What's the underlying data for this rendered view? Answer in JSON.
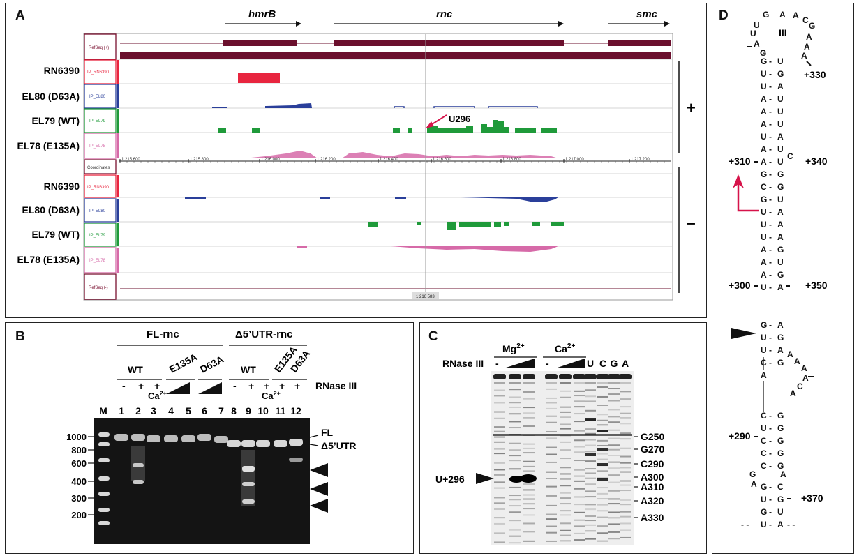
{
  "panel_a": {
    "label": "A",
    "genes": [
      "hmrB",
      "rnc",
      "smc"
    ],
    "track_labels_plus": [
      "RN6390",
      "EL80 (D63A)",
      "EL79 (WT)",
      "EL78 (E135A)"
    ],
    "track_labels_minus": [
      "RN6390",
      "EL80 (D63A)",
      "EL79 (WT)",
      "EL78 (E135A)"
    ],
    "track_boxes": {
      "refseq_plus": "RefSeq (+)",
      "ip_rn6390": "IP_RN6390",
      "ip_el80": "IP_EL80",
      "ip_el79": "IP_EL79",
      "ip_el78": "IP_EL78",
      "coordinates": "Coordinates",
      "refseq_minus": "RefSeq (-)"
    },
    "coord_ticks": [
      "1 215 600",
      "1 215 800",
      "1 216 000",
      "1 216 200",
      "1 216 400",
      "1 216 600",
      "1 216 800",
      "1 217 000",
      "1 217 200"
    ],
    "cursor_label": "1 216 583",
    "strand_plus": "+",
    "strand_minus": "−",
    "annotation": "U296",
    "colors": {
      "rn6390": "#e8253f",
      "el80": "#2a3f9a",
      "el79": "#1f9a3a",
      "el78": "#d66aa8",
      "refseq": "#6b0f2d"
    }
  },
  "panel_b": {
    "label": "B",
    "group1": "FL-rnc",
    "group2": "Δ5’UTR-rnc",
    "wt": "WT",
    "e135a": "E135A",
    "d63a": "D63A",
    "rnase": "RNase III",
    "ca": "Ca2+",
    "signs_left": [
      "-",
      "+",
      "+"
    ],
    "signs_right": [
      "-",
      "+",
      "+",
      "+",
      "+"
    ],
    "lanes": [
      "M",
      "1",
      "2",
      "3",
      "4",
      "5",
      "6",
      "7",
      "8",
      "9",
      "10",
      "11",
      "12"
    ],
    "size_markers": [
      "1000",
      "800",
      "600",
      "400",
      "300",
      "200"
    ],
    "band_fl": "FL",
    "band_d5": "Δ5’UTR"
  },
  "panel_c": {
    "label": "C",
    "mg": "Mg2+",
    "ca": "Ca2+",
    "rnase": "RNase III",
    "minus": "-",
    "ladder": [
      "U",
      "C",
      "G",
      "A"
    ],
    "right_marks": [
      "G250",
      "G270",
      "C290",
      "A300",
      "A310",
      "A320",
      "A330"
    ],
    "left_mark": "U+296"
  },
  "panel_d": {
    "label": "D",
    "loop_label": "III",
    "positions": [
      "+330",
      "+310",
      "+340",
      "+300",
      "+350",
      "+290",
      "+370"
    ]
  }
}
